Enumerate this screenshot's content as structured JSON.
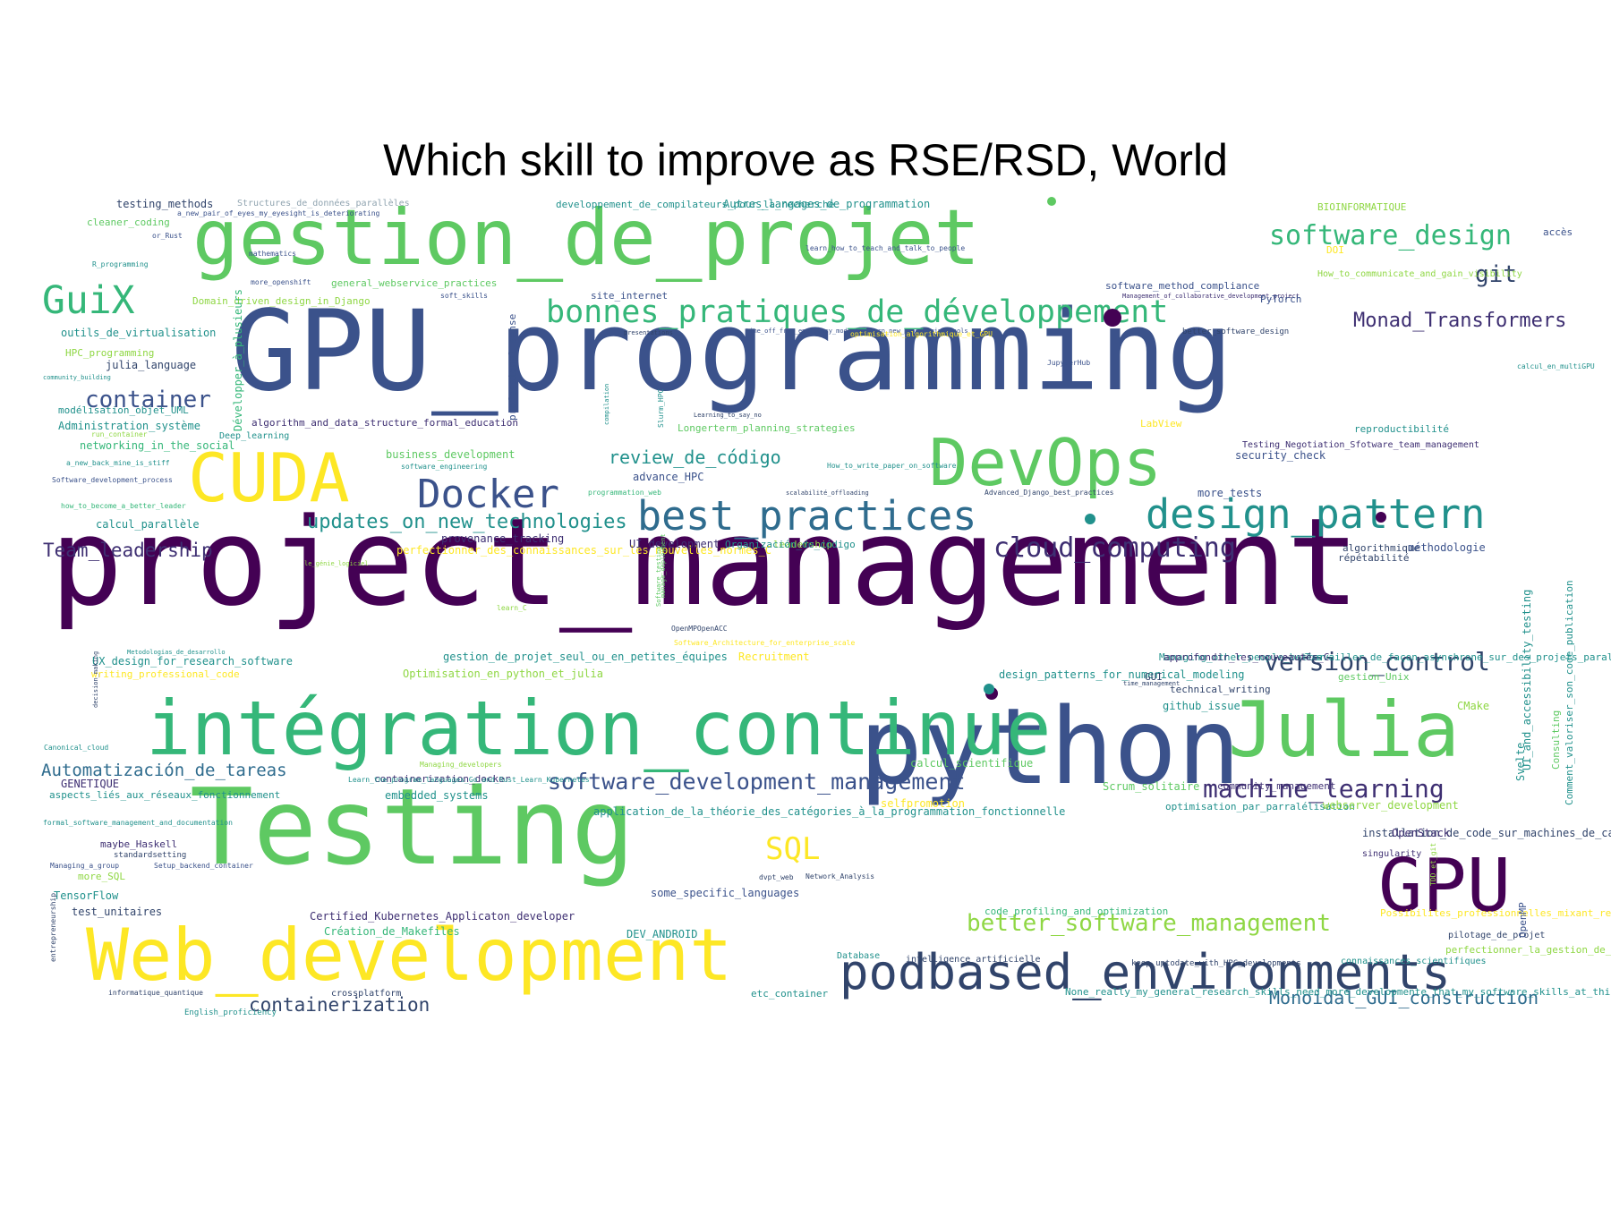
{
  "title": "Which skill to improve as RSE/RSD, World",
  "palette": {
    "purple": "#440154",
    "indigo": "#3b528b",
    "teal": "#21918c",
    "green": "#5ec962",
    "yellow": "#fde725"
  },
  "words": [
    {
      "text": "project_management",
      "color": "#440154"
    },
    {
      "text": "GPU_programming",
      "color": "#3b528b"
    },
    {
      "text": "Testing",
      "color": "#5ec962"
    },
    {
      "text": "python",
      "color": "#3b528b"
    },
    {
      "text": "gestion_de_projet",
      "color": "#5ec962"
    },
    {
      "text": "intégration_continue",
      "color": "#35b779"
    },
    {
      "text": "Julia",
      "color": "#5ec962"
    },
    {
      "text": "Web_development",
      "color": "#fde725"
    },
    {
      "text": "CUDA",
      "color": "#fde725"
    },
    {
      "text": "DevOps",
      "color": "#5ec962"
    },
    {
      "text": "podbased_environments",
      "color": "#31446b"
    },
    {
      "text": "GPU",
      "color": "#440154"
    },
    {
      "text": "best_practices",
      "color": "#2f6c8e"
    },
    {
      "text": "design_pattern",
      "color": "#21918c"
    },
    {
      "text": "Docker",
      "color": "#3b528b"
    },
    {
      "text": "bonnes_pratiques_de_développement",
      "color": "#35b779"
    },
    {
      "text": "GuiX",
      "color": "#35b779"
    },
    {
      "text": "software_design",
      "color": "#35b779"
    },
    {
      "text": "container",
      "color": "#3b528b"
    },
    {
      "text": "git",
      "color": "#31446b"
    },
    {
      "text": "Monad_Transformers",
      "color": "#3e2f72"
    },
    {
      "text": "cloud_computing",
      "color": "#3e2f72"
    },
    {
      "text": "updates_on_new_technologies",
      "color": "#21918c"
    },
    {
      "text": "review_de_código",
      "color": "#21918c"
    },
    {
      "text": "Team_leadership",
      "color": "#3e2f72"
    },
    {
      "text": "version_control",
      "color": "#31446b"
    },
    {
      "text": "machine_learning",
      "color": "#3e2f72"
    },
    {
      "text": "software_development_management",
      "color": "#3b528b"
    },
    {
      "text": "Automatización_de_tareas",
      "color": "#2f6c8e"
    },
    {
      "text": "better_software_management",
      "color": "#8fd744"
    },
    {
      "text": "SQL",
      "color": "#fde725"
    },
    {
      "text": "containerization",
      "color": "#31446b"
    },
    {
      "text": "Monoidal_GUI_construction",
      "color": "#2f6c8e"
    },
    {
      "text": "testing_methods",
      "color": "#31446b"
    },
    {
      "text": "Structures_de_données_parallèles",
      "color": "#90a4b0"
    },
    {
      "text": "a_new_pair_of_eyes_my_eyesight_is_deteriorating",
      "color": "#3b528b"
    },
    {
      "text": "cleaner_coding",
      "color": "#5ec962"
    },
    {
      "text": "or_Rust",
      "color": "#3b528b"
    },
    {
      "text": "R_programming",
      "color": "#21918c"
    },
    {
      "text": "mathematics",
      "color": "#3b528b"
    },
    {
      "text": "more_openshift",
      "color": "#3b528b"
    },
    {
      "text": "general_webservice_practices",
      "color": "#5ec962"
    },
    {
      "text": "soft_skills",
      "color": "#3b528b"
    },
    {
      "text": "Domain_driven_design_in_Django",
      "color": "#8fd744"
    },
    {
      "text": "site_internet",
      "color": "#3b528b"
    },
    {
      "text": "outils_de_virtualisation",
      "color": "#21918c"
    },
    {
      "text": "professional_sense",
      "color": "#3b528b"
    },
    {
      "text": "HPC_programming",
      "color": "#8fd744"
    },
    {
      "text": "julia_language",
      "color": "#31446b"
    },
    {
      "text": "community_building",
      "color": "#21918c"
    },
    {
      "text": "modélisation_objet_UML",
      "color": "#21918c"
    },
    {
      "text": "Administration_système",
      "color": "#21918c"
    },
    {
      "text": "run_container",
      "color": "#8fd744"
    },
    {
      "text": "Développer_à_plusieurs",
      "color": "#35b779"
    },
    {
      "text": "algorithm_and_data_structure_formal_education",
      "color": "#3e2f72"
    },
    {
      "text": "Deep_learning",
      "color": "#21918c"
    },
    {
      "text": "networking_in_the_social",
      "color": "#35b779"
    },
    {
      "text": "business_development",
      "color": "#5ec962"
    },
    {
      "text": "software_engineering",
      "color": "#21918c"
    },
    {
      "text": "a_new_back_mine_is_stiff",
      "color": "#21918c"
    },
    {
      "text": "Software_development_process",
      "color": "#3b528b"
    },
    {
      "text": "how_to_become_a_better_leader",
      "color": "#35b779"
    },
    {
      "text": "calcul_parallèle",
      "color": "#21918c"
    },
    {
      "text": "provenance_tracking",
      "color": "#3e2f72"
    },
    {
      "text": "perfectionner_des_connaissances_sur_les_nouvelles_normes_C",
      "color": "#fde725"
    },
    {
      "text": "le_génie_logiciel",
      "color": "#8fd744"
    },
    {
      "text": "developpement_de_compilateurs_pour_la_recherche",
      "color": "#21918c"
    },
    {
      "text": "Autres_langages_de_programmation",
      "color": "#21918c"
    },
    {
      "text": "BIOINFORMATIQUE",
      "color": "#8fd744"
    },
    {
      "text": "DOI",
      "color": "#fde725"
    },
    {
      "text": "accès",
      "color": "#3b528b"
    },
    {
      "text": "learn_how_to_teach_and_talk_to_people",
      "color": "#3b528b"
    },
    {
      "text": "How_to_communicate_and_gain_visibility",
      "color": "#8fd744"
    },
    {
      "text": "software_method_compliance",
      "color": "#3b528b"
    },
    {
      "text": "Management_of_collaborative_development_project",
      "color": "#3e2f72"
    },
    {
      "text": "PyTorch",
      "color": "#3b528b"
    },
    {
      "text": "presentations",
      "color": "#31446b"
    },
    {
      "text": "time_off_from_emergency_mode_to_learn_new_programming_tools",
      "color": "#3b528b"
    },
    {
      "text": "optimisation_algorithmique_et_GPU",
      "color": "#fde725"
    },
    {
      "text": "better_software_design",
      "color": "#31446b"
    },
    {
      "text": "JupyterHub",
      "color": "#3b528b"
    },
    {
      "text": "calcul_en_multiGPU",
      "color": "#21918c"
    },
    {
      "text": "Slurm_HPC",
      "color": "#21918c"
    },
    {
      "text": "compilation",
      "color": "#21918c"
    },
    {
      "text": "Learning_to_say_no",
      "color": "#31446b"
    },
    {
      "text": "Longerterm_planning_strategies",
      "color": "#5ec962"
    },
    {
      "text": "LabView",
      "color": "#fde725"
    },
    {
      "text": "reproductibilité",
      "color": "#21918c"
    },
    {
      "text": "Testing_Negotiation_Sfotware_team_management",
      "color": "#3e2f72"
    },
    {
      "text": "security_check",
      "color": "#3b528b"
    },
    {
      "text": "How_to_write_paper_on_software",
      "color": "#21918c"
    },
    {
      "text": "advance_HPC",
      "color": "#3b528b"
    },
    {
      "text": "scalabilité_offloading",
      "color": "#31446b"
    },
    {
      "text": "Advanced_Django_best_practices",
      "color": "#31446b"
    },
    {
      "text": "more_tests",
      "color": "#3b528b"
    },
    {
      "text": "programmation_web",
      "color": "#35b779"
    },
    {
      "text": "UI_development",
      "color": "#3e2f72"
    },
    {
      "text": "leadership",
      "color": "#8fd744"
    },
    {
      "text": "Organización_de_código",
      "color": "#21918c"
    },
    {
      "text": "répétabilité",
      "color": "#31446b"
    },
    {
      "text": "algorithmique",
      "color": "#31446b"
    },
    {
      "text": "méthodologie",
      "color": "#3b528b"
    },
    {
      "text": "manage_deployment",
      "color": "#5ec962"
    },
    {
      "text": "Software_testing",
      "color": "#5ec962"
    },
    {
      "text": "learn_C",
      "color": "#8fd744"
    },
    {
      "text": "OpenMPOpenACC",
      "color": "#31446b"
    },
    {
      "text": "Software_Architecture_for_enterprise_scale",
      "color": "#fde725"
    },
    {
      "text": "Metodologias_de_desarrollo",
      "color": "#21918c"
    },
    {
      "text": "gestion_de_projet_seul_ou_en_petites_équipes",
      "color": "#21918c"
    },
    {
      "text": "Recruitment",
      "color": "#fde725"
    },
    {
      "text": "Managing_other_people_better",
      "color": "#21918c"
    },
    {
      "text": "design_patterns_for_numerical_modeling",
      "color": "#21918c"
    },
    {
      "text": "Travailler_de_façon_asynchrone_sur_des_projets_parallèles",
      "color": "#21918c"
    },
    {
      "text": "UX_design_for_research_software",
      "color": "#21918c"
    },
    {
      "text": "writing_professional_code",
      "color": "#fde725"
    },
    {
      "text": "Optimisation_en_python_et_julia",
      "color": "#8fd744"
    },
    {
      "text": "GUI",
      "color": "#31446b"
    },
    {
      "text": "approfondir_les_nouveautés_C",
      "color": "#3e2f72"
    },
    {
      "text": "gestion_Unix",
      "color": "#5ec962"
    },
    {
      "text": "time_management",
      "color": "#31446b"
    },
    {
      "text": "technical_writing",
      "color": "#31446b"
    },
    {
      "text": "github_issue",
      "color": "#21918c"
    },
    {
      "text": "CMake",
      "color": "#8fd744"
    },
    {
      "text": "decision_making",
      "color": "#31446b"
    },
    {
      "text": "Svelte",
      "color": "#21918c"
    },
    {
      "text": "Canonical_cloud",
      "color": "#21918c"
    },
    {
      "text": "Managing_developers",
      "color": "#8fd744"
    },
    {
      "text": "calcul_scientifique",
      "color": "#5ec962"
    },
    {
      "text": "GENETIQUE",
      "color": "#3e2f72"
    },
    {
      "text": "containerization_docker",
      "color": "#3e2f72"
    },
    {
      "text": "aspects_liés_aux_réseaux_fonctionnement",
      "color": "#21918c"
    },
    {
      "text": "Learn_the_program_languages_Go_and_Rust_Learn_Kubernetes",
      "color": "#21918c"
    },
    {
      "text": "embedded_systems",
      "color": "#21918c"
    },
    {
      "text": "Scrum_solitaire",
      "color": "#5ec962"
    },
    {
      "text": "optimisation_par_parralélisation",
      "color": "#21918c"
    },
    {
      "text": "webserver_development",
      "color": "#8fd744"
    },
    {
      "text": "community_management",
      "color": "#3e2f72"
    },
    {
      "text": "UI_and_accessibility_testing",
      "color": "#21918c"
    },
    {
      "text": "Consulting",
      "color": "#5ec962"
    },
    {
      "text": "Comment_valoriser_son_code_publication",
      "color": "#21918c"
    },
    {
      "text": "formal_software_management_and_documentation",
      "color": "#21918c"
    },
    {
      "text": "application_de_la_théorie_des_catégories_à_la_programmation_fonctionnelle",
      "color": "#21918c"
    },
    {
      "text": "selfpromotion",
      "color": "#fde725"
    },
    {
      "text": "installation_de_code_sur_machines_de_calcul_mutualisé",
      "color": "#31446b"
    },
    {
      "text": "OpenStack",
      "color": "#3e2f72"
    },
    {
      "text": "maybe_Haskell",
      "color": "#3e2f72"
    },
    {
      "text": "singularity",
      "color": "#3e2f72"
    },
    {
      "text": "standardsetting",
      "color": "#31446b"
    },
    {
      "text": "Setup_backend_container",
      "color": "#3b528b"
    },
    {
      "text": "Managing_a_group",
      "color": "#3b528b"
    },
    {
      "text": "more_SQL",
      "color": "#8fd744"
    },
    {
      "text": "Network_Analysis",
      "color": "#31446b"
    },
    {
      "text": "dvpt_web",
      "color": "#31446b"
    },
    {
      "text": "TDD_et_git",
      "color": "#8fd744"
    },
    {
      "text": "TensorFlow",
      "color": "#21918c"
    },
    {
      "text": "some_specific_languages",
      "color": "#3b528b"
    },
    {
      "text": "test_unitaires",
      "color": "#31446b"
    },
    {
      "text": "Certified_Kubernetes_Applicaton_developer",
      "color": "#3e2f72"
    },
    {
      "text": "code_profiling_and_optimization",
      "color": "#35b779"
    },
    {
      "text": "Possibilites_professionnelles_mixant_recherche_et_developpement_de_codes",
      "color": "#fde725"
    },
    {
      "text": "Création_de_Makefiles",
      "color": "#35b779"
    },
    {
      "text": "DEV_ANDROID",
      "color": "#21918c"
    },
    {
      "text": "pilotage_de_projet",
      "color": "#31446b"
    },
    {
      "text": "OpenMP",
      "color": "#3b528b"
    },
    {
      "text": "entrepreneurship",
      "color": "#31446b"
    },
    {
      "text": "Database",
      "color": "#21918c"
    },
    {
      "text": "intelligence_artificielle",
      "color": "#31446b"
    },
    {
      "text": "keep_uptodate_with_HPC_developments",
      "color": "#31446b"
    },
    {
      "text": "connaissances_scientifiques",
      "color": "#21918c"
    },
    {
      "text": "perfectionner_la_gestion_de_projet_en_développement_logiciel",
      "color": "#8fd744"
    },
    {
      "text": "informatique_quantique",
      "color": "#31446b"
    },
    {
      "text": "crossplatform",
      "color": "#31446b"
    },
    {
      "text": "etc_container",
      "color": "#21918c"
    },
    {
      "text": "None_really_my_general_research_skills_need_more_developmente_that_my_software_skills_at_this_point",
      "color": "#21918c"
    },
    {
      "text": "English_proficiency",
      "color": "#21918c"
    }
  ]
}
